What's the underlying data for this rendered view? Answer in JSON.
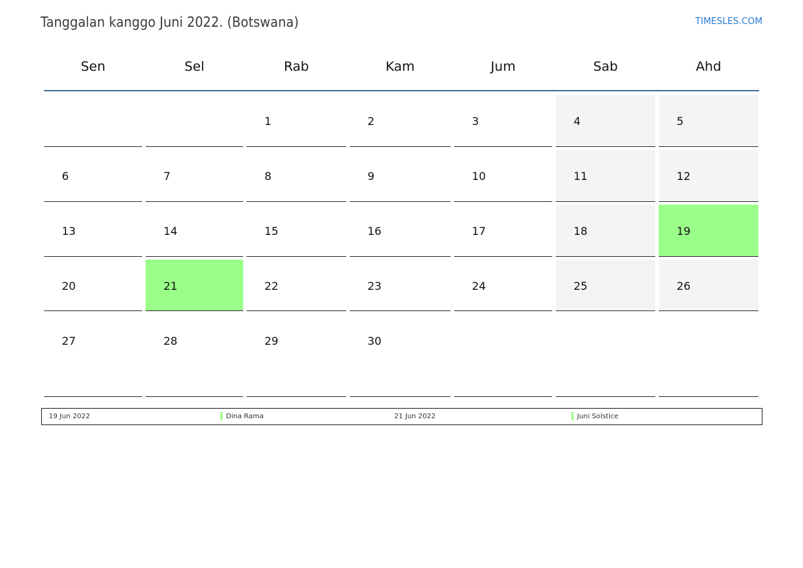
{
  "title": "Tanggalan kanggo Juni 2022. (Botswana)",
  "brand": "TIMESLES.COM",
  "days": [
    "Sen",
    "Sel",
    "Rab",
    "Kam",
    "Jum",
    "Sab",
    "Ahd"
  ],
  "weeks": [
    [
      null,
      null,
      1,
      2,
      3,
      4,
      5
    ],
    [
      6,
      7,
      8,
      9,
      10,
      11,
      12
    ],
    [
      13,
      14,
      15,
      16,
      17,
      18,
      19
    ],
    [
      20,
      21,
      22,
      23,
      24,
      25,
      26
    ],
    [
      27,
      28,
      29,
      30,
      null,
      null,
      null
    ]
  ],
  "holiday_days": [
    19,
    21
  ],
  "colors": {
    "holiday": "#99ff88",
    "weekend": "#f4f4f4",
    "header_line": "#4a6e9a",
    "brand": "#2a7bd0"
  },
  "legend": [
    {
      "date": "19 Jun 2022",
      "name": "Dina Rama"
    },
    {
      "date": "21 Jun 2022",
      "name": "Juni Solstice"
    }
  ]
}
